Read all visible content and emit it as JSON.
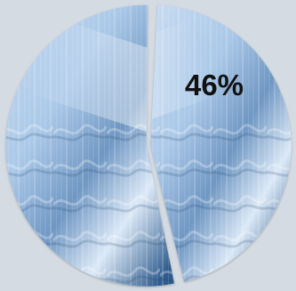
{
  "chart_data": {
    "type": "pie",
    "categories": [
      "",
      ""
    ],
    "values": [
      46,
      54
    ],
    "data_labels": [
      "46%",
      ""
    ],
    "title": "",
    "legend": "none"
  },
  "colors": {
    "background": "#d4dbe2",
    "slice_fill": "#8fb6dc",
    "slice_shadow": "#3f6a99",
    "highlight": "#f4f9ff"
  },
  "icons": {
    "slice_texture": "waterfall-photo-texture"
  }
}
